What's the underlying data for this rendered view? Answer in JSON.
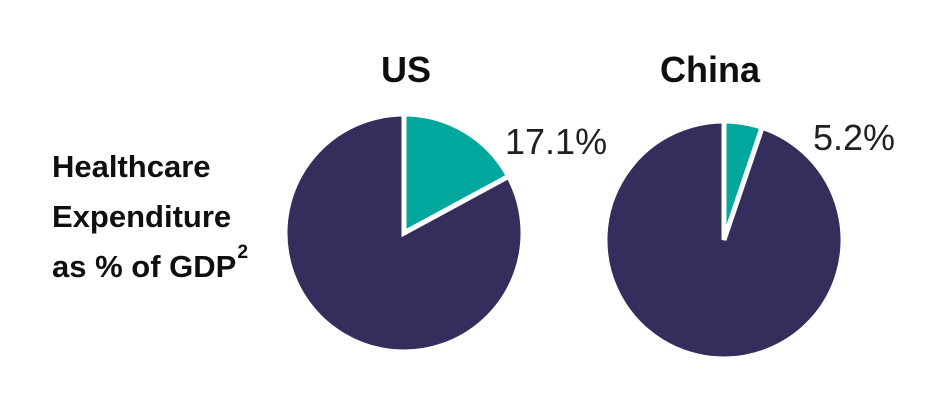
{
  "colors": {
    "remainder_navy": "#332E5C",
    "highlight_teal": "#00A79C",
    "heading_text": "#0F0F0F",
    "value_label_text": "#231F20",
    "separator_white": "#FFFFFF",
    "background": "#FFFFFF"
  },
  "row_label": {
    "line1": "Healthcare",
    "line2": "Expenditure",
    "line3": "as % of GDP",
    "footnote_marker": "2"
  },
  "chart_data": {
    "type": "pie",
    "title": "Healthcare Expenditure as % of GDP",
    "footnote_marker": "2",
    "start_angle_deg": -90,
    "direction": "clockwise",
    "legend": "none",
    "separator_color": "#FFFFFF",
    "slice_colors": {
      "highlight": "#00A79C",
      "remainder": "#332E5C"
    },
    "charts": [
      {
        "label": "US",
        "value_pct": 17.1,
        "data_label": "17.1%",
        "slices": [
          {
            "name": "healthcare-expenditure",
            "value": 17.1
          },
          {
            "name": "rest-of-gdp",
            "value": 82.9
          }
        ]
      },
      {
        "label": "China",
        "value_pct": 5.2,
        "data_label": "5.2%",
        "slices": [
          {
            "name": "healthcare-expenditure",
            "value": 5.2
          },
          {
            "name": "rest-of-gdp",
            "value": 94.8
          }
        ]
      }
    ]
  }
}
